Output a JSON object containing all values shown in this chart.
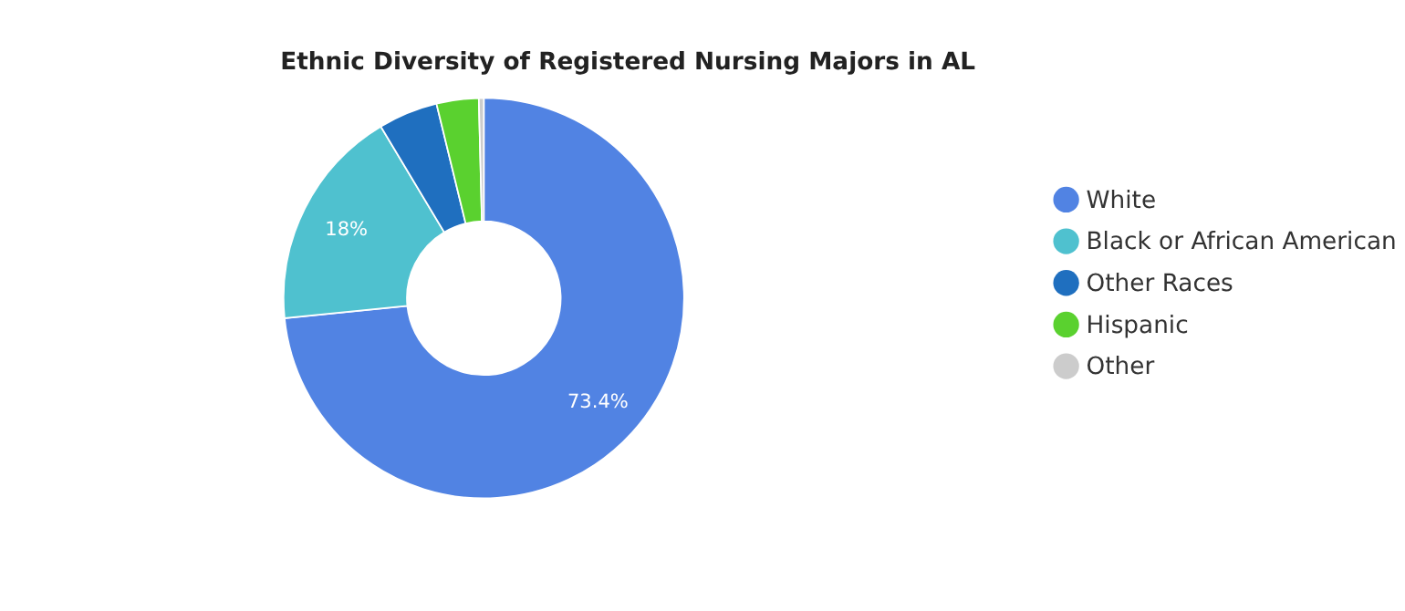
{
  "chart_data": {
    "type": "donut",
    "title": "Ethnic Diversity of Registered Nursing Majors in AL",
    "categories": [
      "White",
      "Black or African American",
      "Other Races",
      "Hispanic",
      "Other"
    ],
    "values": [
      73.4,
      18,
      4.8,
      3.4,
      0.4
    ],
    "colors": [
      "#5183e3",
      "#4fc1cf",
      "#1f6fbf",
      "#5ad12f",
      "#cccccc"
    ],
    "value_labels": [
      "73.4%",
      "18%",
      null,
      null,
      null
    ],
    "legend": "right"
  }
}
